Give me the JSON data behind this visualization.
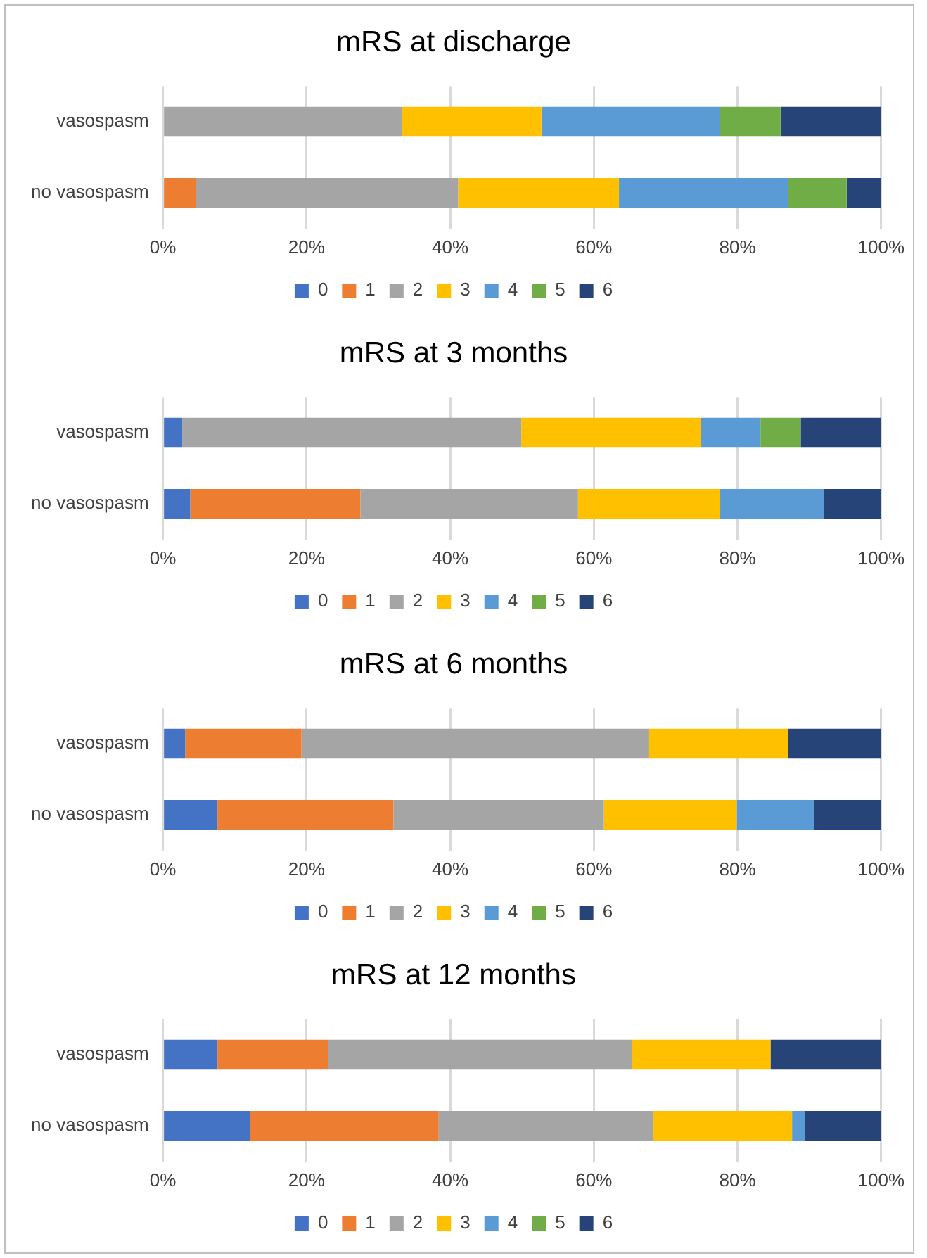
{
  "chart_data": [
    {
      "type": "bar",
      "title": "mRS at discharge",
      "orientation": "horizontal",
      "stacked": true,
      "categories": [
        "vasospasm",
        "no vasospasm"
      ],
      "xlim": [
        0,
        100
      ],
      "xticks": [
        {
          "value": 0,
          "label": "0%"
        },
        {
          "value": 20,
          "label": "20%"
        },
        {
          "value": 40,
          "label": "40%"
        },
        {
          "value": 60,
          "label": "60%"
        },
        {
          "value": 80,
          "label": "80%"
        },
        {
          "value": 100,
          "label": "100%"
        }
      ],
      "grid": "x",
      "legend": "bottom",
      "series": [
        {
          "name": "0",
          "color": "#4472c4",
          "values": [
            0,
            0
          ]
        },
        {
          "name": "1",
          "color": "#ed7d31",
          "values": [
            0,
            4.6
          ]
        },
        {
          "name": "2",
          "color": "#a5a5a5",
          "values": [
            33.3,
            36.5
          ]
        },
        {
          "name": "3",
          "color": "#ffc000",
          "values": [
            19.4,
            22.4
          ]
        },
        {
          "name": "4",
          "color": "#5b9bd5",
          "values": [
            24.9,
            23.5
          ]
        },
        {
          "name": "5",
          "color": "#70ad47",
          "values": [
            8.4,
            8.2
          ]
        },
        {
          "name": "6",
          "color": "#264478",
          "values": [
            14.0,
            4.8
          ]
        }
      ]
    },
    {
      "type": "bar",
      "title": "mRS at 3 months",
      "orientation": "horizontal",
      "stacked": true,
      "categories": [
        "vasospasm",
        "no vasospasm"
      ],
      "xlim": [
        0,
        100
      ],
      "xticks": [
        {
          "value": 0,
          "label": "0%"
        },
        {
          "value": 20,
          "label": "20%"
        },
        {
          "value": 40,
          "label": "40%"
        },
        {
          "value": 60,
          "label": "60%"
        },
        {
          "value": 80,
          "label": "80%"
        },
        {
          "value": 100,
          "label": "100%"
        }
      ],
      "grid": "x",
      "legend": "bottom",
      "series": [
        {
          "name": "0",
          "color": "#4472c4",
          "values": [
            2.7,
            3.8
          ]
        },
        {
          "name": "1",
          "color": "#ed7d31",
          "values": [
            0,
            23.7
          ]
        },
        {
          "name": "2",
          "color": "#a5a5a5",
          "values": [
            47.2,
            30.3
          ]
        },
        {
          "name": "3",
          "color": "#ffc000",
          "values": [
            25.0,
            19.8
          ]
        },
        {
          "name": "4",
          "color": "#5b9bd5",
          "values": [
            8.3,
            14.4
          ]
        },
        {
          "name": "5",
          "color": "#70ad47",
          "values": [
            5.6,
            0
          ]
        },
        {
          "name": "6",
          "color": "#264478",
          "values": [
            11.2,
            8.0
          ]
        }
      ]
    },
    {
      "type": "bar",
      "title": "mRS at 6 months",
      "orientation": "horizontal",
      "stacked": true,
      "categories": [
        "vasospasm",
        "no vasospasm"
      ],
      "xlim": [
        0,
        100
      ],
      "xticks": [
        {
          "value": 0,
          "label": "0%"
        },
        {
          "value": 20,
          "label": "20%"
        },
        {
          "value": 40,
          "label": "40%"
        },
        {
          "value": 60,
          "label": "60%"
        },
        {
          "value": 80,
          "label": "80%"
        },
        {
          "value": 100,
          "label": "100%"
        }
      ],
      "grid": "x",
      "legend": "bottom",
      "series": [
        {
          "name": "0",
          "color": "#4472c4",
          "values": [
            3.1,
            7.6
          ]
        },
        {
          "name": "1",
          "color": "#ed7d31",
          "values": [
            16.2,
            24.5
          ]
        },
        {
          "name": "2",
          "color": "#a5a5a5",
          "values": [
            48.4,
            29.3
          ]
        },
        {
          "name": "3",
          "color": "#ffc000",
          "values": [
            19.3,
            18.5
          ]
        },
        {
          "name": "4",
          "color": "#5b9bd5",
          "values": [
            0,
            10.8
          ]
        },
        {
          "name": "5",
          "color": "#70ad47",
          "values": [
            0,
            0
          ]
        },
        {
          "name": "6",
          "color": "#264478",
          "values": [
            13.0,
            9.3
          ]
        }
      ]
    },
    {
      "type": "bar",
      "title": "mRS at 12 months",
      "orientation": "horizontal",
      "stacked": true,
      "categories": [
        "vasospasm",
        "no vasospasm"
      ],
      "xlim": [
        0,
        100
      ],
      "xticks": [
        {
          "value": 0,
          "label": "0%"
        },
        {
          "value": 20,
          "label": "20%"
        },
        {
          "value": 40,
          "label": "40%"
        },
        {
          "value": 60,
          "label": "60%"
        },
        {
          "value": 80,
          "label": "80%"
        },
        {
          "value": 100,
          "label": "100%"
        }
      ],
      "grid": "x",
      "legend": "bottom",
      "series": [
        {
          "name": "0",
          "color": "#4472c4",
          "values": [
            7.6,
            12.1
          ]
        },
        {
          "name": "1",
          "color": "#ed7d31",
          "values": [
            15.4,
            26.3
          ]
        },
        {
          "name": "2",
          "color": "#a5a5a5",
          "values": [
            42.3,
            29.9
          ]
        },
        {
          "name": "3",
          "color": "#ffc000",
          "values": [
            19.3,
            19.3
          ]
        },
        {
          "name": "4",
          "color": "#5b9bd5",
          "values": [
            0,
            1.8
          ]
        },
        {
          "name": "5",
          "color": "#70ad47",
          "values": [
            0,
            0
          ]
        },
        {
          "name": "6",
          "color": "#264478",
          "values": [
            15.4,
            10.6
          ]
        }
      ]
    }
  ]
}
